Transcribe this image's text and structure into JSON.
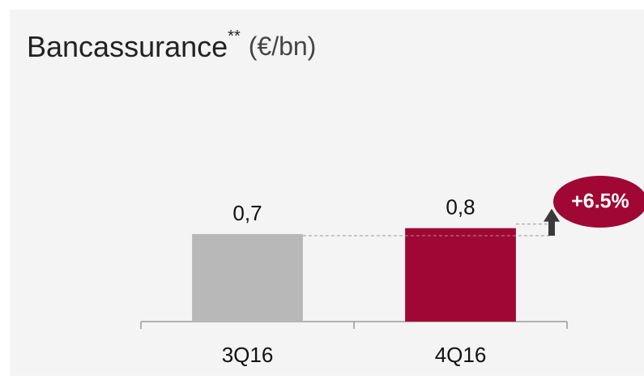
{
  "chart_data": {
    "type": "bar",
    "title": "Bancassurance",
    "title_superscript": "**",
    "title_unit": "(€/bn)",
    "categories": [
      "3Q16",
      "4Q16"
    ],
    "values": [
      0.74,
      0.79
    ],
    "value_labels": [
      "0,7",
      "0,8"
    ],
    "colors": [
      "#b8b8b8",
      "#a00734"
    ],
    "ylim": [
      0,
      1
    ],
    "annotation": "+6.5%"
  }
}
